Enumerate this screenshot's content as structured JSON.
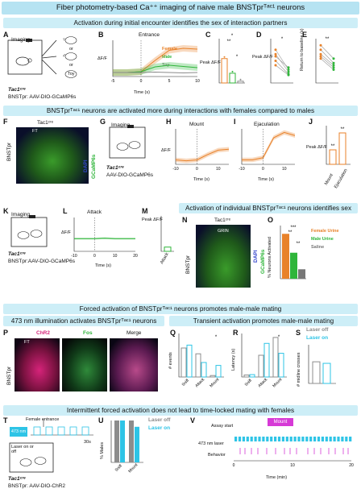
{
  "title": "Fiber photometry-based Ca⁺⁺ imaging of naive male BNSTprᵀᵃᶜ¹ neurons",
  "sections": {
    "s1": "Activation during initial encounter identifies the sex of interaction partners",
    "s2": "BNSTprᵀᵃᶜ¹ neurons are activated more during interactions with females compared to males",
    "s3": "Activation of individual BNSTprᵀᵃᶜ¹ neurons identifies sex",
    "s4": "Forced activation of BNSTprᵀᵃᶜ¹ neurons promotes male-male mating",
    "s5a": "473 nm illumination activates BNSTprᵀᵃᶜ¹ neurons",
    "s5b": "Transient activation promotes male-male mating",
    "s6": "Intermittent forced activation does not lead to time-locked mating with females"
  },
  "panel_letters": {
    "A": "A",
    "B": "B",
    "C": "C",
    "D": "D",
    "E": "E",
    "F": "F",
    "G": "G",
    "H": "H",
    "I": "I",
    "J": "J",
    "K": "K",
    "L": "L",
    "M": "M",
    "N": "N",
    "O": "O",
    "P": "P",
    "Q": "Q",
    "R": "R",
    "S": "S",
    "T": "T",
    "U": "U",
    "V": "V"
  },
  "common": {
    "imaging": "Imaging",
    "tac1cre": "Tac1ᶜʳᵉ",
    "virus_gcamp": "BNSTpr: AAV-DIO-GCaMP6s",
    "virus_gcamp2": "AAV-DIO-GCaMP6s",
    "virus_gcamp3": "BNSTpr:AAV-DIO-GCaMP6s",
    "virus_chr2": "BNSTpr: AAV-DIO-ChR2",
    "dff": "ΔF/F",
    "time_s": "Time (s)",
    "peak_dff": "Peak ΔF/F",
    "or": "or",
    "female_symbol": "♀",
    "male_symbol": "♂",
    "toy": "Toy"
  },
  "panel_B": {
    "title": "Entrance",
    "legend": [
      "Female",
      "Male",
      "Toy"
    ],
    "xticks": [
      "-5",
      "0",
      "5",
      "10"
    ]
  },
  "panel_C": {
    "stars": [
      "*",
      "**",
      "*"
    ]
  },
  "panel_D": {
    "stars": [
      "*"
    ]
  },
  "panel_E": {
    "ylabel": "Return to baseline (s)",
    "stars": [
      "**"
    ]
  },
  "panel_F": {
    "label": "Tac1ᶜʳᵉ",
    "region": "BNSTpr",
    "ft": "FT",
    "stain1": "GCaMP6s",
    "stain2": "DAPI"
  },
  "panel_H": {
    "title": "Mount",
    "xticks": [
      "-10",
      "0",
      "10"
    ]
  },
  "panel_I": {
    "title": "Ejaculation",
    "xticks": [
      "-10",
      "0",
      "10"
    ]
  },
  "panel_J": {
    "ylabel": "Peak ΔF/F",
    "cats": [
      "Mount",
      "Ejaculation"
    ],
    "stars": [
      "**",
      "**"
    ]
  },
  "panel_L": {
    "title": "Attack",
    "xticks": [
      "-10",
      "0",
      "10",
      "20"
    ]
  },
  "panel_M": {
    "ylabel": "Peak ΔF/F",
    "cat": "Attack"
  },
  "panel_N": {
    "label": "Tac1ᶜʳᵉ",
    "region": "BNSTpr",
    "grin": "GRIN",
    "stain1": "GCaMP6s",
    "stain2": "DAPI"
  },
  "panel_O": {
    "ylabel": "% Neurons Activated",
    "legend": [
      "Female Urine",
      "Male Urine",
      "Saline"
    ],
    "stars": [
      "***",
      "**",
      "**"
    ]
  },
  "panel_P": {
    "region": "BNSTpr",
    "channels": [
      "ChR2",
      "Fos",
      "Merge"
    ],
    "ft": "FT"
  },
  "panel_Q": {
    "ylabel": "# events",
    "cats": [
      "Sniff",
      "Attack",
      "Mount"
    ],
    "stars": [
      "*"
    ]
  },
  "panel_R": {
    "ylabel": "Latency (s)",
    "cats": [
      "Sniff",
      "Attack",
      "Mount"
    ],
    "stars": [
      "*"
    ]
  },
  "panel_S": {
    "ylabel": "# midline crosses",
    "legend": [
      "Laser off",
      "Laser on"
    ]
  },
  "panel_T": {
    "laser": "473 nm",
    "entrance": "Female entrance",
    "laser_state": "Laser on or off",
    "scale": "30s"
  },
  "panel_U": {
    "ylabel": "% Males",
    "cats": [
      "Sniff",
      "Mount"
    ],
    "legend": [
      "Laser off",
      "Laser on"
    ]
  },
  "panel_V": {
    "assay": "Assay start",
    "mount": "Mount",
    "rows": [
      "473 nm laser",
      "Behavior"
    ],
    "xlabel": "Time (min)",
    "xticks": [
      "0",
      "10",
      "20"
    ]
  },
  "colors": {
    "female": "#e8822a",
    "male": "#2fb53a",
    "toy": "#8a8a8a",
    "saline": "#777777",
    "laser_on": "#2ec4e6",
    "laser_off": "#8c8c8c",
    "band": "#cdeef7",
    "mount": "#d63ad6"
  },
  "chart_data": [
    {
      "id": "B",
      "type": "line",
      "title": "Entrance",
      "series": [
        {
          "name": "Female",
          "x": [
            -5,
            -2.5,
            0,
            2.5,
            5,
            7.5,
            10
          ],
          "values": [
            0.0,
            0.0,
            0.02,
            0.3,
            0.55,
            0.6,
            0.58
          ]
        },
        {
          "name": "Male",
          "x": [
            -5,
            -2.5,
            0,
            2.5,
            5,
            7.5,
            10
          ],
          "values": [
            0.0,
            0.0,
            0.02,
            0.14,
            0.18,
            0.15,
            0.12
          ]
        },
        {
          "name": "Toy",
          "x": [
            -5,
            -2.5,
            0,
            2.5,
            5,
            7.5,
            10
          ],
          "values": [
            0.0,
            0.0,
            0.0,
            0.01,
            0.0,
            -0.01,
            0.0
          ]
        }
      ]
    },
    {
      "id": "C",
      "type": "bar",
      "categories": [
        "Female",
        "Male",
        "Toy"
      ],
      "values": [
        0.55,
        0.22,
        0.04
      ]
    },
    {
      "id": "D",
      "type": "line",
      "categories": [
        "Female",
        "Male"
      ],
      "pairs": [
        [
          0.75,
          0.3
        ],
        [
          0.65,
          0.25
        ],
        [
          0.6,
          0.35
        ],
        [
          0.5,
          0.2
        ],
        [
          0.4,
          0.18
        ]
      ]
    },
    {
      "id": "E",
      "type": "line",
      "categories": [
        "Female",
        "Male"
      ],
      "pairs": [
        [
          0.85,
          0.55
        ],
        [
          0.75,
          0.45
        ],
        [
          0.65,
          0.4
        ],
        [
          0.6,
          0.35
        ],
        [
          0.55,
          0.3
        ]
      ]
    },
    {
      "id": "H",
      "type": "line",
      "title": "Mount",
      "x": [
        -10,
        -5,
        0,
        5,
        10,
        15
      ],
      "values": [
        0.0,
        -0.02,
        0.0,
        0.12,
        0.22,
        0.24
      ]
    },
    {
      "id": "I",
      "type": "line",
      "title": "Ejaculation",
      "x": [
        -10,
        -5,
        0,
        5,
        10,
        15
      ],
      "values": [
        0.0,
        0.0,
        0.05,
        0.5,
        0.62,
        0.55
      ]
    },
    {
      "id": "J",
      "type": "bar",
      "categories": [
        "Mount",
        "Ejaculation"
      ],
      "values": [
        0.3,
        0.65
      ]
    },
    {
      "id": "L",
      "type": "line",
      "title": "Attack",
      "x": [
        -10,
        -5,
        0,
        5,
        10,
        15,
        20
      ],
      "values": [
        0.0,
        0.0,
        0.0,
        0.01,
        0.0,
        0.0,
        0.0
      ]
    },
    {
      "id": "M",
      "type": "bar",
      "categories": [
        "Attack"
      ],
      "values": [
        0.12
      ]
    },
    {
      "id": "O",
      "type": "bar",
      "categories": [
        "Female Urine",
        "Male Urine",
        "Saline"
      ],
      "values": [
        38,
        22,
        8
      ]
    },
    {
      "id": "Q",
      "type": "bar",
      "categories": [
        "Sniff",
        "Attack",
        "Mount"
      ],
      "series": [
        {
          "name": "Laser off",
          "values": [
            10,
            8,
            0.5
          ]
        },
        {
          "name": "Laser on",
          "values": [
            11,
            5,
            4
          ]
        }
      ]
    },
    {
      "id": "R",
      "type": "bar",
      "categories": [
        "Sniff",
        "Attack",
        "Mount"
      ],
      "series": [
        {
          "name": "Laser off",
          "values": [
            5,
            55,
            100
          ]
        },
        {
          "name": "Laser on",
          "values": [
            6,
            85,
            60
          ]
        }
      ]
    },
    {
      "id": "S",
      "type": "bar",
      "categories": [
        "Laser off",
        "Laser on"
      ],
      "values": [
        140,
        130
      ]
    },
    {
      "id": "U",
      "type": "bar",
      "categories": [
        "Sniff",
        "Mount"
      ],
      "series": [
        {
          "name": "Laser off",
          "values": [
            100,
            100
          ]
        },
        {
          "name": "Laser on",
          "values": [
            100,
            85
          ]
        }
      ]
    }
  ]
}
